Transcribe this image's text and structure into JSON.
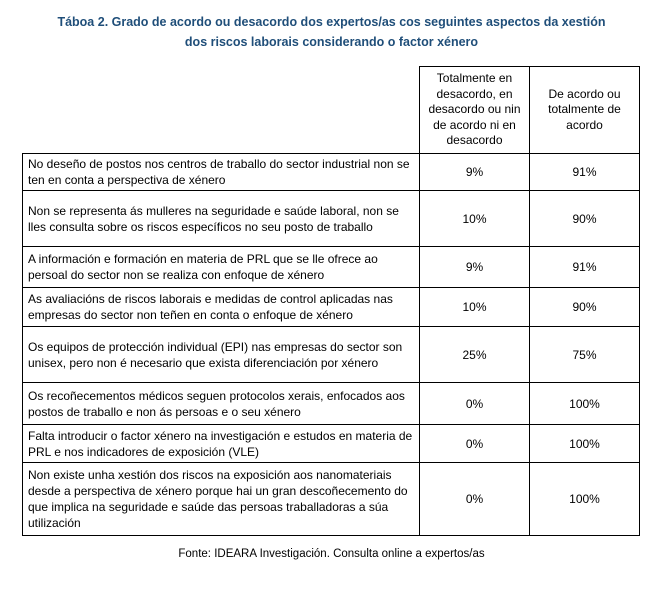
{
  "caption": {
    "line1": "Táboa 2. Grado de acordo ou desacordo dos expertos/as cos seguintes aspectos da xestión",
    "line2": "dos riscos laborais considerando o factor xénero"
  },
  "table": {
    "header": {
      "col1": "Totalmente en desacordo, en desacordo ou nin de acordo ni en desacordo",
      "col2": "De acordo ou totalmente de acordo"
    },
    "rows": [
      {
        "statement": "No deseño de postos nos centros de traballo do sector industrial non se ten en  conta a perspectiva de xénero",
        "disagree": "9%",
        "agree": "91%"
      },
      {
        "statement": "Non se representa ás mulleres na seguridade e saúde laboral, non se lles consulta sobre os riscos específicos no seu posto de traballo",
        "disagree": "10%",
        "agree": "90%"
      },
      {
        "statement": "A información e formación en materia de PRL que se lle ofrece ao persoal do sector non se realiza con enfoque de xénero",
        "disagree": "9%",
        "agree": "91%"
      },
      {
        "statement": "As avaliacións de riscos laborais e medidas de control aplicadas nas empresas do sector non teñen en conta o enfoque de xénero",
        "disagree": "10%",
        "agree": "90%"
      },
      {
        "statement": "Os equipos de protección individual (EPI) nas empresas do sector son unisex, pero non é necesario que exista diferenciación por xénero",
        "disagree": "25%",
        "agree": "75%"
      },
      {
        "statement": "Os recoñecementos médicos seguen protocolos xerais, enfocados aos postos de traballo e non ás persoas e o seu xénero",
        "disagree": "0%",
        "agree": "100%"
      },
      {
        "statement": "Falta introducir o factor xénero na investigación e estudos en materia de PRL e nos indicadores de exposición (VLE)",
        "disagree": "0%",
        "agree": "100%"
      },
      {
        "statement": "Non existe unha xestión dos riscos na exposición aos nanomateriais desde a perspectiva de xénero porque hai un gran descoñecemento do que implica na seguridade e saúde das persoas traballadoras a súa utilización",
        "disagree": "0%",
        "agree": "100%"
      }
    ]
  },
  "source": "Fonte: IDEARA Investigación. Consulta online a expertos/as",
  "colors": {
    "caption": "#1f4e79",
    "border": "#000000",
    "text": "#000000"
  }
}
